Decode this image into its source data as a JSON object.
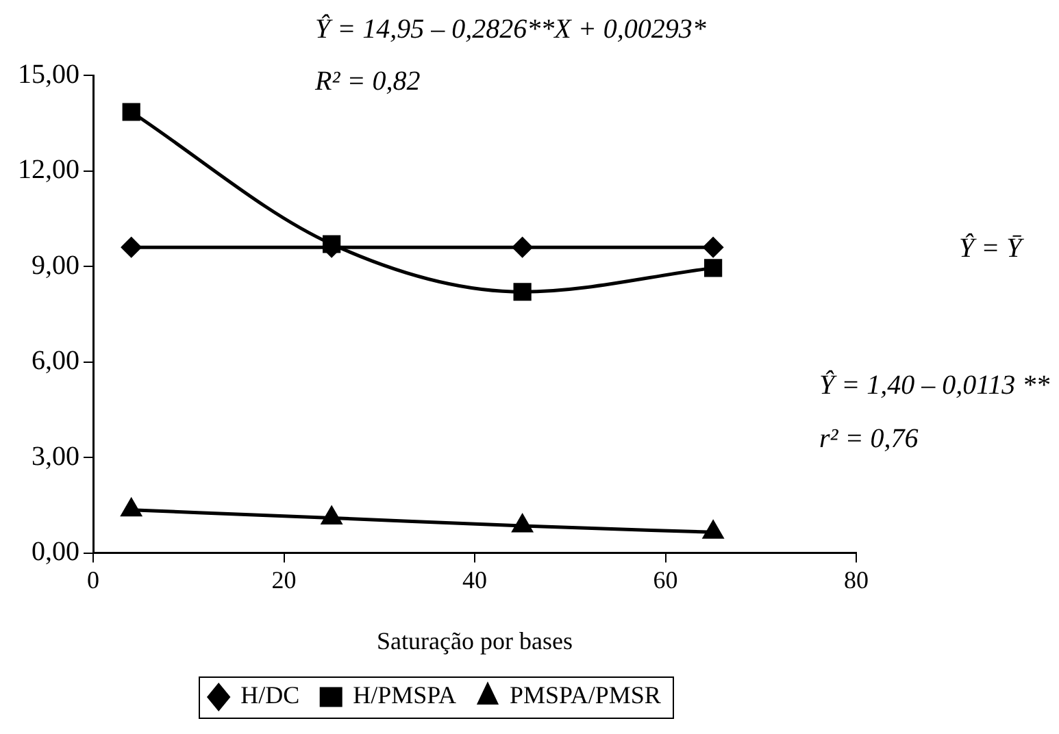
{
  "chart_data": {
    "type": "line",
    "xlabel": "Saturação por bases",
    "x": [
      4,
      25,
      45,
      65
    ],
    "xlim": [
      0,
      80
    ],
    "xticks": [
      0,
      20,
      40,
      60,
      80
    ],
    "ylim": [
      0,
      15
    ],
    "yticks": [
      {
        "value": 0,
        "label": "0,00"
      },
      {
        "value": 3,
        "label": "3,00"
      },
      {
        "value": 6,
        "label": "6,00"
      },
      {
        "value": 9,
        "label": "9,00"
      },
      {
        "value": 12,
        "label": "12,00"
      },
      {
        "value": 15,
        "label": "15,00"
      }
    ],
    "grid": false,
    "legend": "bottom",
    "series": [
      {
        "name": "H/DC",
        "color": "#000000",
        "marker": "diamond",
        "values": [
          9.6,
          9.6,
          9.6,
          9.6
        ]
      },
      {
        "name": "H/PMSPA",
        "color": "#000000",
        "marker": "square",
        "values": [
          13.85,
          9.7,
          8.2,
          8.95
        ]
      },
      {
        "name": "PMSPA/PMSR",
        "color": "#000000",
        "marker": "triangle",
        "values": [
          1.35,
          1.1,
          0.85,
          0.65
        ]
      }
    ],
    "annotations": [
      "Ŷ = 14,95 – 0,2826**X + 0,00293*",
      "R² = 0,82",
      "Ŷ = Ȳ",
      "Ŷ = 1,40 – 0,0113 **",
      "r² = 0,76"
    ]
  }
}
